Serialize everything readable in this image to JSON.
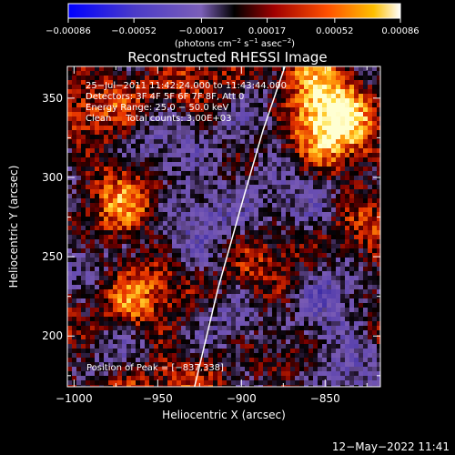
{
  "chart_data": {
    "type": "heatmap",
    "title": "Reconstructed RHESSI Image",
    "xlabel": "Heliocentric X (arcsec)",
    "ylabel": "Heliocentric Y (arcsec)",
    "xlim": [
      -1004,
      -817
    ],
    "ylim": [
      168,
      370
    ],
    "x_ticks": [
      -1000,
      -950,
      -900,
      -850
    ],
    "y_ticks": [
      200,
      250,
      300,
      350
    ],
    "x_tick_labels": [
      "−1000",
      "−950",
      "−900",
      "−850"
    ],
    "y_tick_labels": [
      "200",
      "250",
      "300",
      "350"
    ],
    "colorbar": {
      "range": [
        -0.00086,
        0.00086
      ],
      "ticks": [
        -0.00086,
        -0.00052,
        -0.00017,
        0.00017,
        0.00052,
        0.00086
      ],
      "tick_labels": [
        "−0.00086",
        "−0.00052",
        "−0.00017",
        "0.00017",
        "0.00052",
        "0.00086"
      ],
      "units_html": "(photons cm<tspan baseline-shift=\"super\" font-size=\"7\">−2</tspan> s<tspan baseline-shift=\"super\" font-size=\"7\">−1</tspan> asec<tspan baseline-shift=\"super\" font-size=\"7\">−2</tspan>)"
    },
    "annotations": [
      "25−Jul−2011 11:42:24.000 to 11:43:44.000",
      "Detectors: 3F 4F 5F 6F 7F 8F, Att 0",
      "Energy Range: 25.0 − 50.0 keV",
      "Clean     Total counts: 3.00E+03"
    ],
    "peak_label": "Position of Peak = [−837,338]",
    "limb_curve": [
      [
        -928,
        168
      ],
      [
        -914,
        230
      ],
      [
        -898,
        290
      ],
      [
        -887,
        330
      ],
      [
        -874,
        370
      ]
    ],
    "colors": {
      "colormap": [
        "#0000ff",
        "#6a5acd",
        "#9370db",
        "#000000",
        "#a00000",
        "#ff4000",
        "#ffa500",
        "#ffffff"
      ]
    }
  },
  "footer": {
    "timestamp": "12−May−2022 11:41"
  }
}
